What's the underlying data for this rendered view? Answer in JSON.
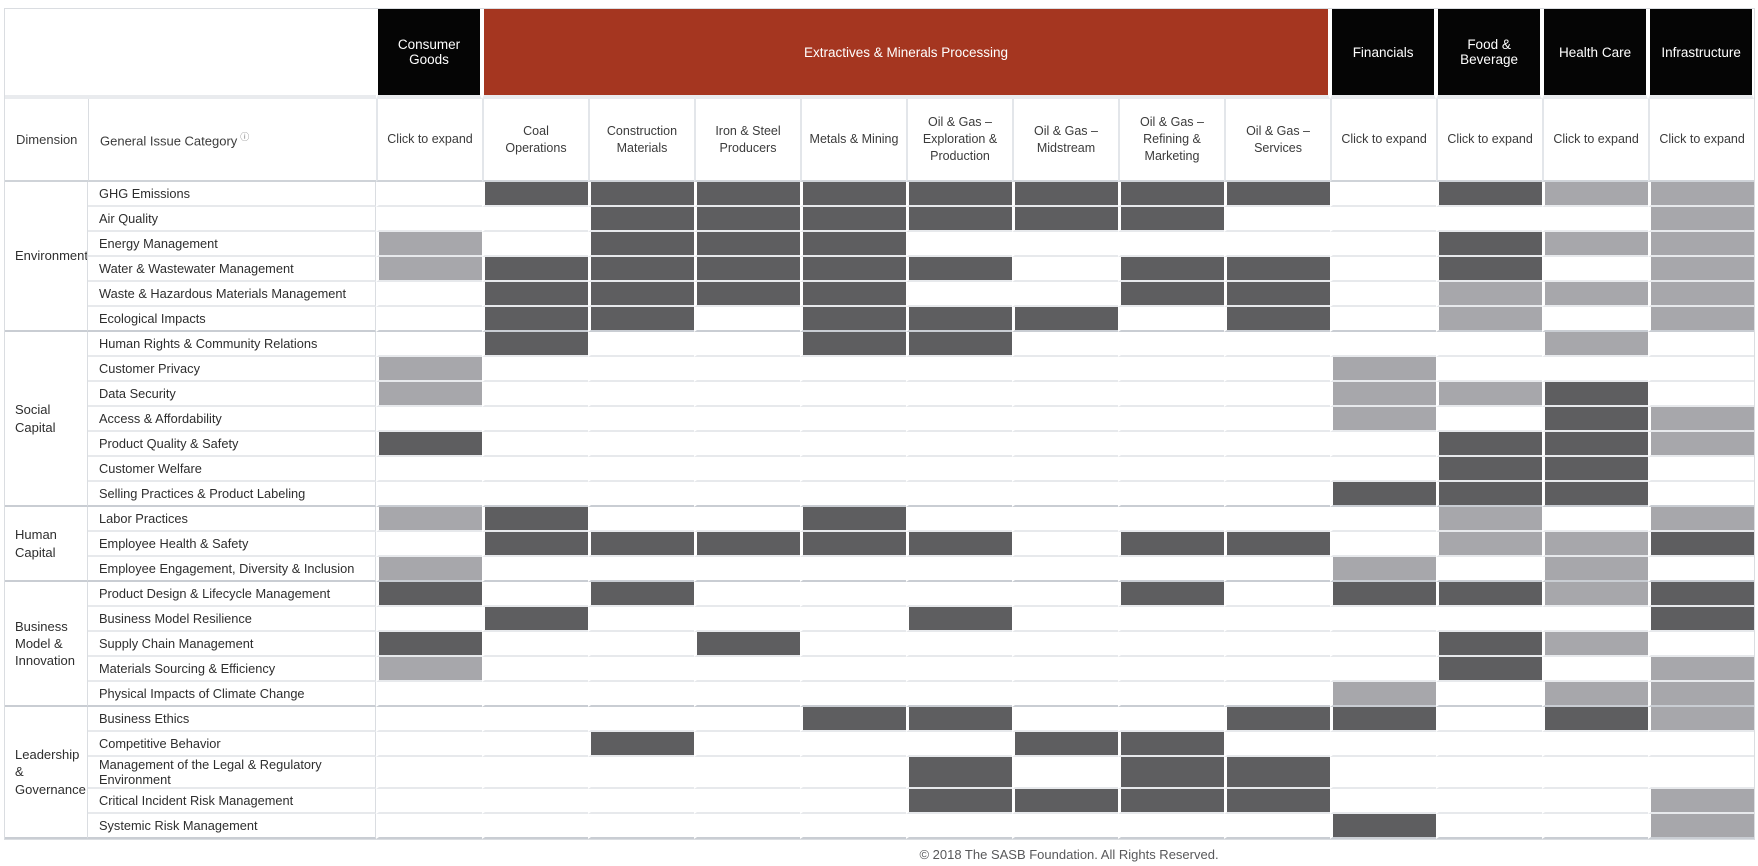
{
  "header": {
    "dimension_label": "Dimension",
    "issue_label": "General Issue Category",
    "info_icon": "ⓘ",
    "sectors": [
      {
        "label": "Consumer Goods",
        "span": 1,
        "color": "#050505"
      },
      {
        "label": "Extractives & Minerals Processing",
        "span": 8,
        "color": "#a53620"
      },
      {
        "label": "Financials",
        "span": 1,
        "color": "#050505"
      },
      {
        "label": "Food & Beverage",
        "span": 1,
        "color": "#050505"
      },
      {
        "label": "Health Care",
        "span": 1,
        "color": "#050505"
      },
      {
        "label": "Infrastructure",
        "span": 1,
        "color": "#050505"
      }
    ],
    "columns": [
      "Click to expand",
      "Coal Operations",
      "Construction Materials",
      "Iron & Steel Producers",
      "Metals & Mining",
      "Oil & Gas – Exploration & Production",
      "Oil & Gas – Midstream",
      "Oil & Gas – Refining & Marketing",
      "Oil & Gas – Services",
      "Click to expand",
      "Click to expand",
      "Click to expand",
      "Click to expand"
    ]
  },
  "legend_colors": {
    "dark": "#5e5e60",
    "light": "#a7a7ab",
    "none": "#ffffff"
  },
  "cell_codes": {
    "D": "material dark",
    "L": "material light",
    "": "not material"
  },
  "groups": [
    {
      "dimension": "Environment",
      "rows": [
        {
          "issue": "GHG Emissions",
          "cells": [
            "",
            "D",
            "D",
            "D",
            "D",
            "D",
            "D",
            "D",
            "D",
            "",
            "D",
            "L",
            "L"
          ]
        },
        {
          "issue": "Air Quality",
          "cells": [
            "",
            "",
            "D",
            "D",
            "D",
            "D",
            "D",
            "D",
            "",
            "",
            "",
            "",
            "L"
          ]
        },
        {
          "issue": "Energy Management",
          "cells": [
            "L",
            "",
            "D",
            "D",
            "D",
            "",
            "",
            "",
            "",
            "",
            "D",
            "L",
            "L"
          ]
        },
        {
          "issue": "Water & Wastewater Management",
          "cells": [
            "L",
            "D",
            "D",
            "D",
            "D",
            "D",
            "",
            "D",
            "D",
            "",
            "D",
            "",
            "L"
          ]
        },
        {
          "issue": "Waste & Hazardous Materials Management",
          "cells": [
            "",
            "D",
            "D",
            "D",
            "D",
            "",
            "",
            "D",
            "D",
            "",
            "L",
            "L",
            "L"
          ]
        },
        {
          "issue": "Ecological Impacts",
          "cells": [
            "",
            "D",
            "D",
            "",
            "D",
            "D",
            "D",
            "",
            "D",
            "",
            "L",
            "",
            "L"
          ]
        }
      ]
    },
    {
      "dimension": "Social Capital",
      "rows": [
        {
          "issue": "Human Rights & Community Relations",
          "cells": [
            "",
            "D",
            "",
            "",
            "D",
            "D",
            "",
            "",
            "",
            "",
            "",
            "L",
            ""
          ]
        },
        {
          "issue": "Customer Privacy",
          "cells": [
            "L",
            "",
            "",
            "",
            "",
            "",
            "",
            "",
            "",
            "L",
            "",
            "",
            ""
          ]
        },
        {
          "issue": "Data Security",
          "cells": [
            "L",
            "",
            "",
            "",
            "",
            "",
            "",
            "",
            "",
            "L",
            "L",
            "D",
            ""
          ]
        },
        {
          "issue": "Access & Affordability",
          "cells": [
            "",
            "",
            "",
            "",
            "",
            "",
            "",
            "",
            "",
            "L",
            "",
            "D",
            "L"
          ]
        },
        {
          "issue": "Product Quality & Safety",
          "cells": [
            "D",
            "",
            "",
            "",
            "",
            "",
            "",
            "",
            "",
            "",
            "D",
            "D",
            "L"
          ]
        },
        {
          "issue": "Customer Welfare",
          "cells": [
            "",
            "",
            "",
            "",
            "",
            "",
            "",
            "",
            "",
            "",
            "D",
            "D",
            ""
          ]
        },
        {
          "issue": "Selling Practices & Product Labeling",
          "cells": [
            "",
            "",
            "",
            "",
            "",
            "",
            "",
            "",
            "",
            "D",
            "D",
            "D",
            ""
          ]
        }
      ]
    },
    {
      "dimension": "Human Capital",
      "rows": [
        {
          "issue": "Labor Practices",
          "cells": [
            "L",
            "D",
            "",
            "",
            "D",
            "",
            "",
            "",
            "",
            "",
            "L",
            "",
            "L"
          ]
        },
        {
          "issue": "Employee Health & Safety",
          "cells": [
            "",
            "D",
            "D",
            "D",
            "D",
            "D",
            "",
            "D",
            "D",
            "",
            "L",
            "L",
            "D"
          ]
        },
        {
          "issue": "Employee Engagement, Diversity & Inclusion",
          "cells": [
            "L",
            "",
            "",
            "",
            "",
            "",
            "",
            "",
            "",
            "L",
            "",
            "L",
            ""
          ]
        }
      ]
    },
    {
      "dimension": "Business Model & Innovation",
      "rows": [
        {
          "issue": "Product Design & Lifecycle Management",
          "cells": [
            "D",
            "",
            "D",
            "",
            "",
            "",
            "",
            "D",
            "",
            "D",
            "D",
            "L",
            "D"
          ]
        },
        {
          "issue": "Business Model Resilience",
          "cells": [
            "",
            "D",
            "",
            "",
            "",
            "D",
            "",
            "",
            "",
            "",
            "",
            "",
            "D"
          ]
        },
        {
          "issue": "Supply Chain Management",
          "cells": [
            "D",
            "",
            "",
            "D",
            "",
            "",
            "",
            "",
            "",
            "",
            "D",
            "L",
            ""
          ]
        },
        {
          "issue": "Materials Sourcing & Efficiency",
          "cells": [
            "L",
            "",
            "",
            "",
            "",
            "",
            "",
            "",
            "",
            "",
            "D",
            "",
            "L"
          ]
        },
        {
          "issue": "Physical Impacts of Climate Change",
          "cells": [
            "",
            "",
            "",
            "",
            "",
            "",
            "",
            "",
            "",
            "L",
            "",
            "L",
            "L"
          ]
        }
      ]
    },
    {
      "dimension": "Leadership & Governance",
      "rows": [
        {
          "issue": "Business Ethics",
          "cells": [
            "",
            "",
            "",
            "",
            "D",
            "D",
            "",
            "",
            "D",
            "D",
            "",
            "D",
            "L"
          ]
        },
        {
          "issue": "Competitive Behavior",
          "cells": [
            "",
            "",
            "D",
            "",
            "",
            "",
            "D",
            "D",
            "",
            "",
            "",
            "",
            ""
          ]
        },
        {
          "issue": "Management of the Legal & Regulatory Environment",
          "cells": [
            "",
            "",
            "",
            "",
            "",
            "D",
            "",
            "D",
            "D",
            "",
            "",
            "",
            ""
          ]
        },
        {
          "issue": "Critical Incident Risk Management",
          "cells": [
            "",
            "",
            "",
            "",
            "",
            "D",
            "D",
            "D",
            "D",
            "",
            "",
            "",
            "L"
          ]
        },
        {
          "issue": "Systemic Risk Management",
          "cells": [
            "",
            "",
            "",
            "",
            "",
            "",
            "",
            "",
            "",
            "D",
            "",
            "",
            "L"
          ]
        }
      ]
    },
    {
      "dimension_footer_note": ""
    }
  ],
  "footer": {
    "copyright": "© 2018 The SASB Foundation. All Rights Reserved."
  }
}
